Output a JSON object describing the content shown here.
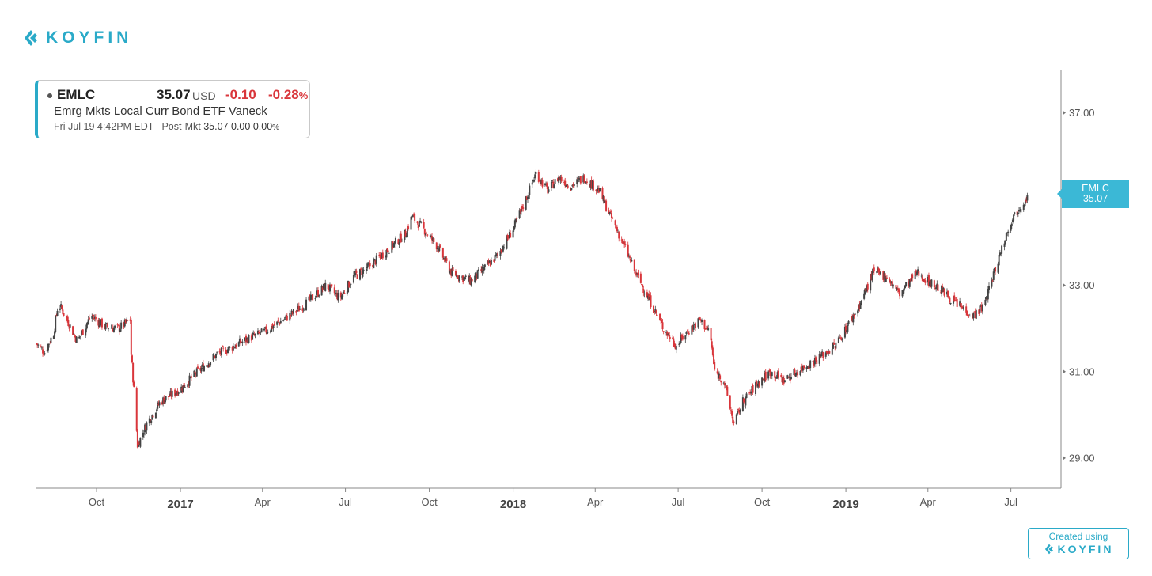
{
  "brand": {
    "name": "KOYFIN",
    "color": "#2aaac8",
    "icon": "koyfin-logo-icon"
  },
  "quote": {
    "ticker": "EMLC",
    "price": "35.07",
    "currency": "USD",
    "change": "-0.10",
    "change_pct": "-0.28",
    "pct_sign": "%",
    "name": "Emrg Mkts Local Curr Bond ETF Vaneck",
    "timestamp": "Fri Jul 19 4:42PM EDT",
    "post_label": "Post-Mkt",
    "post_price": "35.07",
    "post_change": "0.00",
    "post_change_pct": "0.00",
    "negative_color": "#d9363b"
  },
  "price_tag": {
    "ticker": "EMLC",
    "price": "35.07",
    "color": "#3bb8d6"
  },
  "footer": {
    "created_label": "Created using",
    "brand": "KOYFIN"
  },
  "chart_data": {
    "type": "candlestick",
    "symbol": "EMLC",
    "up_color": "#444444",
    "down_color": "#d9363b",
    "ylim": [
      28.3,
      38.0
    ],
    "xlim": [
      "2016-07-27",
      "2019-08-25"
    ],
    "y_ticks": [
      "37.00",
      "33.00",
      "31.00",
      "29.00"
    ],
    "y_tick_values": [
      37.0,
      33.0,
      31.0,
      29.0
    ],
    "x_ticks": [
      {
        "label": "Oct",
        "date": "2016-10-01",
        "major": false
      },
      {
        "label": "2017",
        "date": "2017-01-01",
        "major": true
      },
      {
        "label": "Apr",
        "date": "2017-04-01",
        "major": false
      },
      {
        "label": "Jul",
        "date": "2017-07-01",
        "major": false
      },
      {
        "label": "Oct",
        "date": "2017-10-01",
        "major": false
      },
      {
        "label": "2018",
        "date": "2018-01-01",
        "major": true
      },
      {
        "label": "Apr",
        "date": "2018-04-01",
        "major": false
      },
      {
        "label": "Jul",
        "date": "2018-07-01",
        "major": false
      },
      {
        "label": "Oct",
        "date": "2018-10-01",
        "major": false
      },
      {
        "label": "2019",
        "date": "2019-01-01",
        "major": true
      },
      {
        "label": "Apr",
        "date": "2019-04-01",
        "major": false
      },
      {
        "label": "Jul",
        "date": "2019-07-01",
        "major": false
      }
    ],
    "close_path": [
      [
        "2016-07-27",
        31.65
      ],
      [
        "2016-08-05",
        31.45
      ],
      [
        "2016-08-15",
        31.9
      ],
      [
        "2016-08-20",
        32.6
      ],
      [
        "2016-09-01",
        32.1
      ],
      [
        "2016-09-10",
        31.7
      ],
      [
        "2016-09-25",
        32.3
      ],
      [
        "2016-10-10",
        32.05
      ],
      [
        "2016-10-25",
        32.0
      ],
      [
        "2016-11-07",
        32.2
      ],
      [
        "2016-11-08",
        31.4
      ],
      [
        "2016-11-12",
        30.3
      ],
      [
        "2016-11-15",
        29.3
      ],
      [
        "2016-11-25",
        29.8
      ],
      [
        "2016-12-10",
        30.3
      ],
      [
        "2017-01-01",
        30.6
      ],
      [
        "2017-01-20",
        31.0
      ],
      [
        "2017-02-10",
        31.4
      ],
      [
        "2017-03-01",
        31.6
      ],
      [
        "2017-03-20",
        31.8
      ],
      [
        "2017-04-01",
        31.9
      ],
      [
        "2017-05-01",
        32.3
      ],
      [
        "2017-05-20",
        32.6
      ],
      [
        "2017-06-10",
        33.0
      ],
      [
        "2017-06-25",
        32.7
      ],
      [
        "2017-07-10",
        33.2
      ],
      [
        "2017-07-25",
        33.4
      ],
      [
        "2017-08-15",
        33.8
      ],
      [
        "2017-09-05",
        34.2
      ],
      [
        "2017-09-12",
        34.6
      ],
      [
        "2017-09-25",
        34.3
      ],
      [
        "2017-10-10",
        33.9
      ],
      [
        "2017-10-25",
        33.3
      ],
      [
        "2017-11-15",
        33.1
      ],
      [
        "2017-12-01",
        33.4
      ],
      [
        "2017-12-15",
        33.7
      ],
      [
        "2018-01-01",
        34.3
      ],
      [
        "2018-01-15",
        35.0
      ],
      [
        "2018-01-26",
        35.6
      ],
      [
        "2018-02-08",
        35.2
      ],
      [
        "2018-02-20",
        35.5
      ],
      [
        "2018-03-05",
        35.3
      ],
      [
        "2018-03-20",
        35.5
      ],
      [
        "2018-04-05",
        35.2
      ],
      [
        "2018-04-20",
        34.5
      ],
      [
        "2018-05-01",
        34.0
      ],
      [
        "2018-05-15",
        33.3
      ],
      [
        "2018-06-01",
        32.6
      ],
      [
        "2018-06-15",
        32.0
      ],
      [
        "2018-06-29",
        31.6
      ],
      [
        "2018-07-10",
        31.9
      ],
      [
        "2018-07-25",
        32.2
      ],
      [
        "2018-08-05",
        31.9
      ],
      [
        "2018-08-10",
        31.0
      ],
      [
        "2018-08-20",
        30.8
      ],
      [
        "2018-08-31",
        29.8
      ],
      [
        "2018-09-10",
        30.3
      ],
      [
        "2018-09-25",
        30.7
      ],
      [
        "2018-10-10",
        31.0
      ],
      [
        "2018-10-25",
        30.8
      ],
      [
        "2018-11-15",
        31.1
      ],
      [
        "2018-12-01",
        31.3
      ],
      [
        "2018-12-20",
        31.6
      ],
      [
        "2019-01-01",
        32.0
      ],
      [
        "2019-01-15",
        32.5
      ],
      [
        "2019-01-31",
        33.3
      ],
      [
        "2019-02-15",
        33.2
      ],
      [
        "2019-03-01",
        32.8
      ],
      [
        "2019-03-20",
        33.3
      ],
      [
        "2019-04-01",
        33.1
      ],
      [
        "2019-04-15",
        32.9
      ],
      [
        "2019-05-01",
        32.6
      ],
      [
        "2019-05-20",
        32.3
      ],
      [
        "2019-06-01",
        32.5
      ],
      [
        "2019-06-20",
        33.8
      ],
      [
        "2019-07-01",
        34.5
      ],
      [
        "2019-07-10",
        34.8
      ],
      [
        "2019-07-19",
        35.07
      ]
    ]
  }
}
